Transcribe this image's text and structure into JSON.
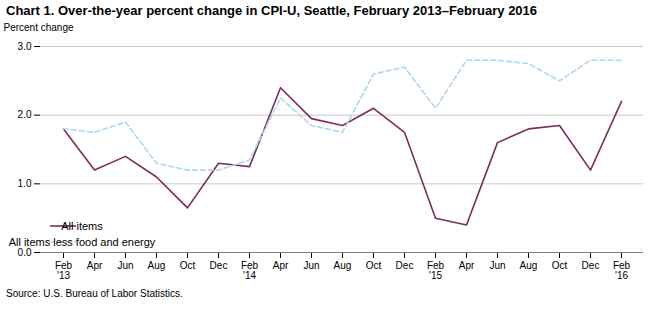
{
  "chart_data": {
    "type": "line",
    "title": "Chart 1. Over-the-year percent change in CPI-U, Seattle, February 2013–February 2016",
    "ylabel": "Percent change",
    "source": "Source: U.S. Bureau of Labor Statistics.",
    "categories": [
      "Feb\n'13",
      "Apr",
      "Jun",
      "Aug",
      "Oct",
      "Dec",
      "Feb\n'14",
      "Apr",
      "Jun",
      "Aug",
      "Oct",
      "Dec",
      "Feb\n'15",
      "Apr",
      "Jun",
      "Aug",
      "Oct",
      "Dec",
      "Feb\n'16"
    ],
    "series": [
      {
        "name": "All items",
        "color": "#7b2d5e",
        "line_style": "solid",
        "values": [
          1.8,
          1.2,
          1.4,
          1.1,
          0.65,
          1.3,
          1.25,
          2.4,
          1.95,
          1.85,
          2.1,
          1.75,
          0.5,
          0.4,
          1.6,
          1.8,
          1.85,
          1.2,
          2.2
        ]
      },
      {
        "name": "All items less food and energy",
        "color": "#aed6f1",
        "line_style": "dashed",
        "values": [
          1.8,
          1.75,
          1.9,
          1.3,
          1.2,
          1.2,
          1.35,
          2.25,
          1.85,
          1.75,
          2.6,
          2.7,
          2.1,
          2.8,
          2.8,
          2.75,
          2.5,
          2.8,
          2.8
        ]
      }
    ],
    "ylim": [
      0.0,
      3.0
    ],
    "yticks": [
      {
        "value": 0,
        "label": "0.0"
      },
      {
        "value": 1,
        "label": "1.0"
      },
      {
        "value": 2,
        "label": "2.0"
      },
      {
        "value": 3,
        "label": "3.0"
      }
    ],
    "grid": true,
    "legend": "lower left"
  }
}
